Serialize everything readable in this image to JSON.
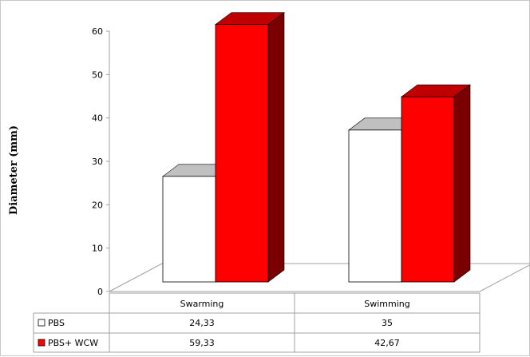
{
  "chart_data": {
    "type": "bar",
    "title": "",
    "xlabel": "",
    "ylabel": "Diameter (mm)",
    "ylim": [
      0,
      60
    ],
    "yticks": [
      0,
      10,
      20,
      30,
      40,
      50,
      60
    ],
    "categories": [
      "Swarming",
      "Swimming"
    ],
    "series": [
      {
        "name": "PBS",
        "values": [
          24.33,
          35
        ],
        "labels": [
          "24,33",
          "35"
        ],
        "color": "#ffffff",
        "top_color": "#c0c0c0",
        "side_color": "#a0a0a0"
      },
      {
        "name": "PBS+ WCW",
        "values": [
          59.33,
          42.67
        ],
        "labels": [
          "59,33",
          "42,67"
        ],
        "color": "#ff0000",
        "top_color": "#c00000",
        "side_color": "#7a0000"
      }
    ],
    "data_table": true,
    "grid": false,
    "legend": "in data table"
  }
}
